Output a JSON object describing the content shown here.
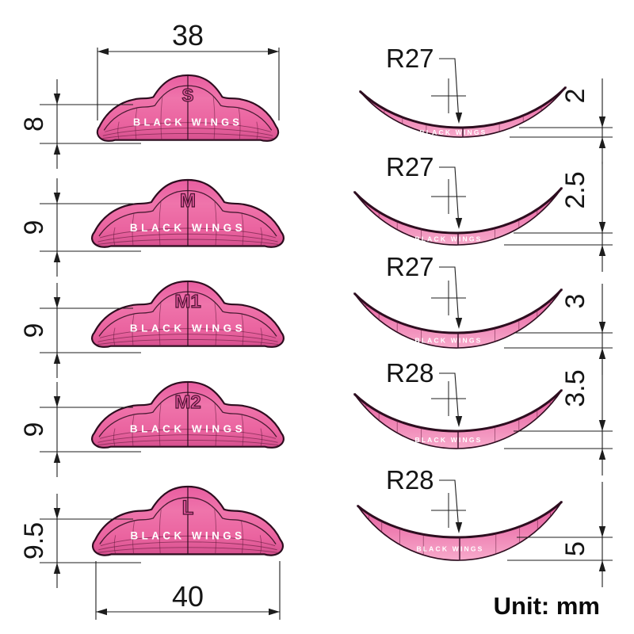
{
  "drawing": {
    "brand": "BLACK WINGS",
    "unit_label": "Unit: mm",
    "top_width_mm": "38",
    "bottom_width_mm": "40",
    "front_views": [
      {
        "size": "S",
        "height_mm": "8"
      },
      {
        "size": "M",
        "height_mm": "9"
      },
      {
        "size": "M1",
        "height_mm": "9"
      },
      {
        "size": "M2",
        "height_mm": "9"
      },
      {
        "size": "L",
        "height_mm": "9.5"
      }
    ],
    "side_views": [
      {
        "radius": "R27",
        "thickness_mm": "2"
      },
      {
        "radius": "R27",
        "thickness_mm": "2.5"
      },
      {
        "radius": "R27",
        "thickness_mm": "3"
      },
      {
        "radius": "R28",
        "thickness_mm": "3.5"
      },
      {
        "radius": "R28",
        "thickness_mm": "5"
      }
    ],
    "colors": {
      "pad_pink": "#ee74ab",
      "pad_dark": "#d44f8d",
      "outline": "#2d0d1f",
      "line": "#1d1d1d",
      "brand_text": "#ffffff"
    }
  }
}
